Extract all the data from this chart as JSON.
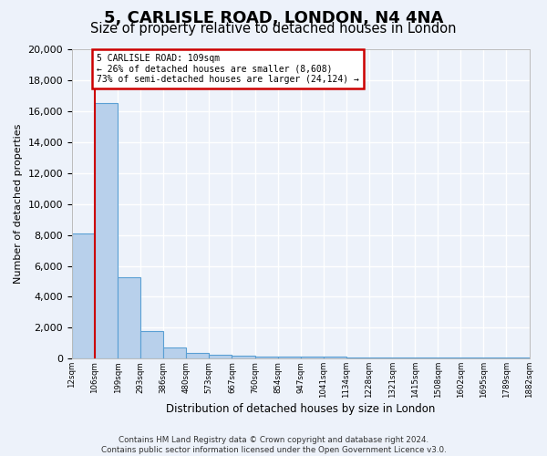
{
  "title1": "5, CARLISLE ROAD, LONDON, N4 4NA",
  "title2": "Size of property relative to detached houses in London",
  "xlabel": "Distribution of detached houses by size in London",
  "ylabel": "Number of detached properties",
  "bar_values": [
    8108,
    16520,
    5280,
    1800,
    720,
    360,
    260,
    200,
    160,
    130,
    120,
    110,
    100,
    90,
    85,
    80,
    75,
    70,
    65,
    60
  ],
  "tick_labels": [
    "12sqm",
    "106sqm",
    "199sqm",
    "293sqm",
    "386sqm",
    "480sqm",
    "573sqm",
    "667sqm",
    "760sqm",
    "854sqm",
    "947sqm",
    "1041sqm",
    "1134sqm",
    "1228sqm",
    "1321sqm",
    "1415sqm",
    "1508sqm",
    "1602sqm",
    "1695sqm",
    "1789sqm",
    "1882sqm"
  ],
  "bar_color": "#b8d0eb",
  "bar_edge_color": "#5a9fd4",
  "vline_x": 1,
  "vline_color": "#cc0000",
  "annotation_text": "5 CARLISLE ROAD: 109sqm\n← 26% of detached houses are smaller (8,608)\n73% of semi-detached houses are larger (24,124) →",
  "annotation_box_facecolor": "#ffffff",
  "annotation_box_edgecolor": "#cc0000",
  "ylim": [
    0,
    20000
  ],
  "yticks": [
    0,
    2000,
    4000,
    6000,
    8000,
    10000,
    12000,
    14000,
    16000,
    18000,
    20000
  ],
  "footer": "Contains HM Land Registry data © Crown copyright and database right 2024.\nContains public sector information licensed under the Open Government Licence v3.0.",
  "bg_color": "#edf2fa",
  "grid_color": "#ffffff",
  "title1_fontsize": 13,
  "title2_fontsize": 10.5
}
